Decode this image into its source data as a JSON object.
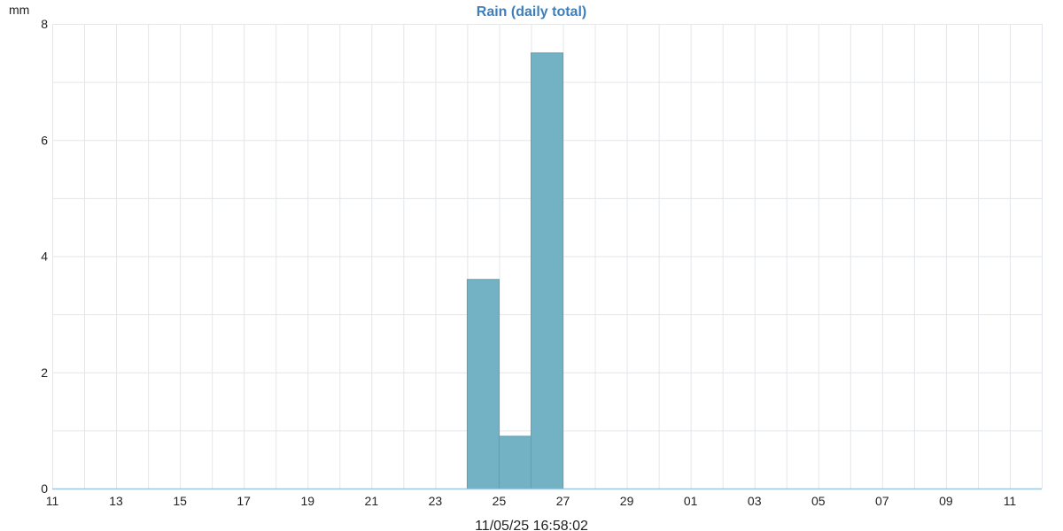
{
  "chart_data": {
    "type": "bar",
    "title": "Rain (daily total)",
    "ylabel": "mm",
    "xlabel": "",
    "footer": "11/05/25 16:58:02",
    "ylim": [
      0,
      8
    ],
    "y_ticks": [
      "0",
      "2",
      "4",
      "6",
      "8"
    ],
    "x_range_days": [
      0,
      31
    ],
    "x_ticks": [
      "11",
      "13",
      "15",
      "17",
      "19",
      "21",
      "23",
      "25",
      "27",
      "29",
      "01",
      "03",
      "05",
      "07",
      "09",
      "11"
    ],
    "bars": [
      {
        "day": "24",
        "value": 3.6
      },
      {
        "day": "25",
        "value": 0.9
      },
      {
        "day": "26",
        "value": 7.5
      }
    ],
    "grid": true,
    "colors": {
      "bar": "#73b1c5",
      "title": "#3d7fbd",
      "baseline": "#9ec8e0"
    }
  }
}
